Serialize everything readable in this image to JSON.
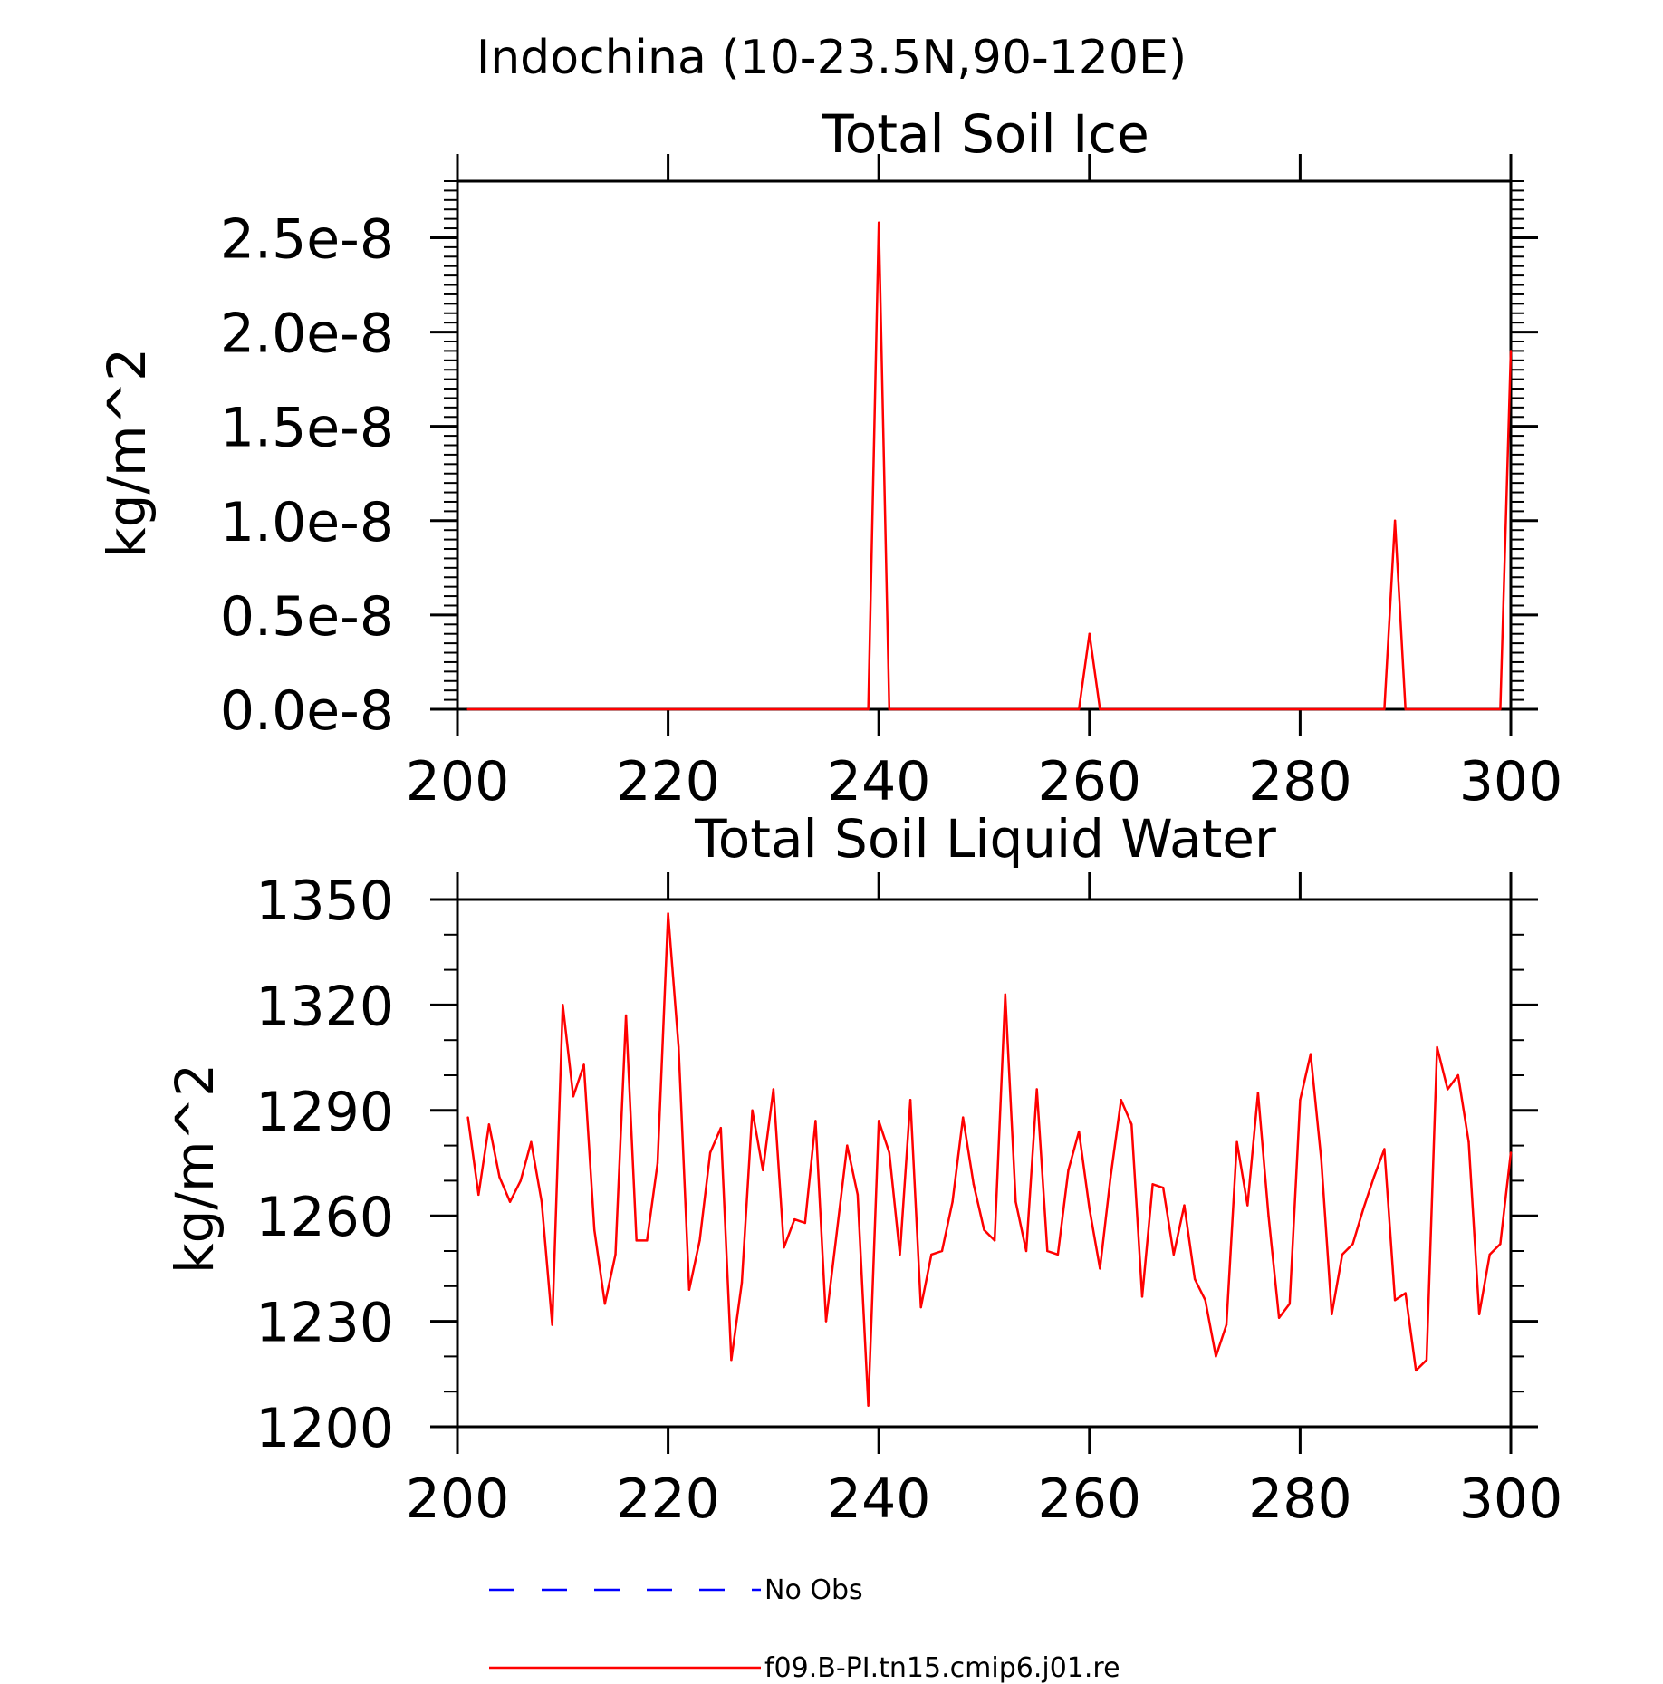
{
  "figure_title": "Indochina (10-23.5N,90-120E)",
  "colors": {
    "model": "#ff0000",
    "obs": "#0000ff",
    "axis": "#000000"
  },
  "legend": {
    "obs_label": "No Obs",
    "model_label": "f09.B-PI.tn15.cmip6.j01.re"
  },
  "chart_data": [
    {
      "type": "line",
      "title": "Total Soil Ice",
      "xlabel": "",
      "ylabel": "kg/m^2",
      "xlim": [
        200,
        300
      ],
      "ylim": [
        0,
        2.8e-08
      ],
      "x_ticks": [
        200,
        220,
        240,
        260,
        280,
        300
      ],
      "x_tick_labels": [
        "200",
        "220",
        "240",
        "260",
        "280",
        "300"
      ],
      "y_ticks": [
        0,
        5e-09,
        1e-08,
        1.5e-08,
        2e-08,
        2.5e-08
      ],
      "y_tick_labels": [
        "0.0e-8",
        "0.5e-8",
        "1.0e-8",
        "1.5e-8",
        "2.0e-8",
        "2.5e-8"
      ],
      "grid": false,
      "series": [
        {
          "name": "f09.B-PI.tn15.cmip6.j01.re",
          "x": [
            201,
            239,
            240,
            241,
            259,
            260,
            261,
            288,
            289,
            290,
            299,
            300
          ],
          "values": [
            0,
            0,
            2.58e-08,
            0,
            0,
            4e-09,
            0,
            0,
            1e-08,
            0,
            0,
            1.9e-08
          ]
        }
      ]
    },
    {
      "type": "line",
      "title": "Total Soil Liquid Water",
      "xlabel": "",
      "ylabel": "kg/m^2",
      "xlim": [
        200,
        300
      ],
      "ylim": [
        1200,
        1350
      ],
      "x_ticks": [
        200,
        220,
        240,
        260,
        280,
        300
      ],
      "x_tick_labels": [
        "200",
        "220",
        "240",
        "260",
        "280",
        "300"
      ],
      "y_ticks": [
        1200,
        1230,
        1260,
        1290,
        1320,
        1350
      ],
      "y_tick_labels": [
        "1200",
        "1230",
        "1260",
        "1290",
        "1320",
        "1350"
      ],
      "grid": false,
      "series": [
        {
          "name": "f09.B-PI.tn15.cmip6.j01.re",
          "x": [
            201,
            202,
            203,
            204,
            205,
            206,
            207,
            208,
            209,
            210,
            211,
            212,
            213,
            214,
            215,
            216,
            217,
            218,
            219,
            220,
            221,
            222,
            223,
            224,
            225,
            226,
            227,
            228,
            229,
            230,
            231,
            232,
            233,
            234,
            235,
            236,
            237,
            238,
            239,
            240,
            241,
            242,
            243,
            244,
            245,
            246,
            247,
            248,
            249,
            250,
            251,
            252,
            253,
            254,
            255,
            256,
            257,
            258,
            259,
            260,
            261,
            262,
            263,
            264,
            265,
            266,
            267,
            268,
            269,
            270,
            271,
            272,
            273,
            274,
            275,
            276,
            277,
            278,
            279,
            280,
            281,
            282,
            283,
            284,
            285,
            286,
            287,
            288,
            289,
            290,
            291,
            292,
            293,
            294,
            295,
            296,
            297,
            298,
            299,
            300
          ],
          "values": [
            1288,
            1266,
            1286,
            1271,
            1264,
            1270,
            1281,
            1264,
            1229,
            1320,
            1294,
            1303,
            1256,
            1235,
            1249,
            1317,
            1253,
            1253,
            1275,
            1346,
            1308,
            1239,
            1253,
            1278,
            1285,
            1219,
            1241,
            1290,
            1273,
            1296,
            1251,
            1259,
            1258,
            1287,
            1230,
            1255,
            1280,
            1266,
            1206,
            1287,
            1278,
            1249,
            1293,
            1234,
            1249,
            1250,
            1264,
            1288,
            1269,
            1256,
            1253,
            1323,
            1264,
            1250,
            1296,
            1250,
            1249,
            1273,
            1284,
            1262,
            1245,
            1271,
            1293,
            1286,
            1237,
            1269,
            1268,
            1249,
            1263,
            1242,
            1236,
            1220,
            1229,
            1281,
            1263,
            1295,
            1260,
            1231,
            1235,
            1293,
            1306,
            1276,
            1232,
            1249,
            1252,
            1262,
            1271,
            1279,
            1236,
            1238,
            1216,
            1219,
            1308,
            1296,
            1300,
            1281,
            1232,
            1249,
            1252,
            1278
          ]
        }
      ]
    }
  ]
}
